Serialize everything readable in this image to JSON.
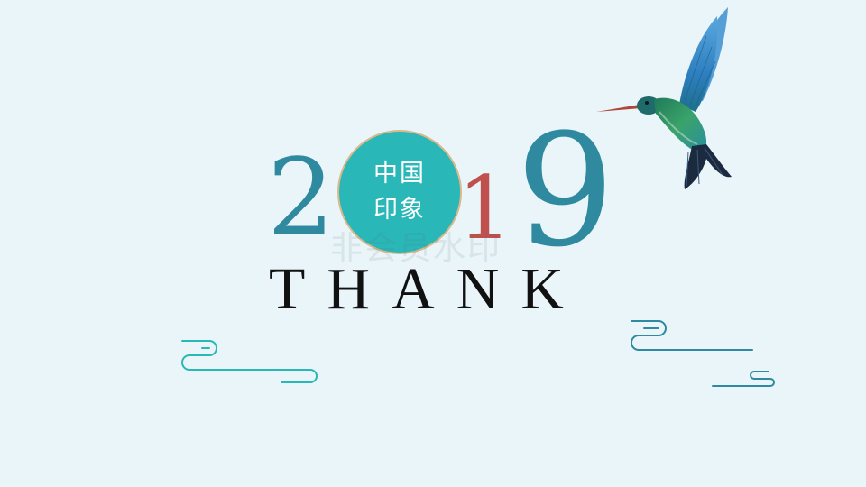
{
  "slide": {
    "year_digits": [
      "2",
      "1",
      "9"
    ],
    "badge_lines": [
      "中国",
      "印象"
    ],
    "thank_text": "THANK",
    "watermark_text": "非会员水印"
  },
  "colors": {
    "background": "#e9f5f8",
    "teal_digit": "#2f8aa0",
    "red_digit": "#c0504d",
    "badge_fill": "#2ab7b7",
    "badge_border": "#d9b98c",
    "cloud_line": "#2ab7b7",
    "cloud_line_dark": "#2f8aa0"
  },
  "icons": {
    "bird": "hummingbird-illustration",
    "cloud_left": "auspicious-cloud-line",
    "cloud_right": "auspicious-cloud-line"
  }
}
